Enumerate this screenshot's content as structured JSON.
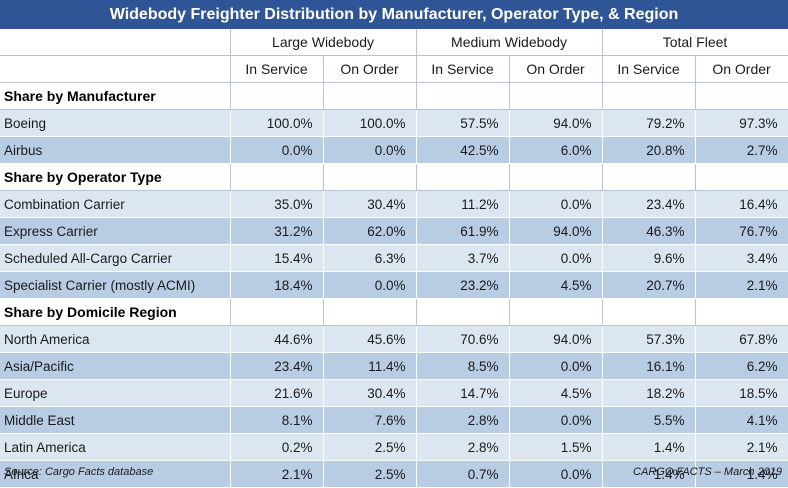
{
  "title": "Widebody Freighter Distribution by Manufacturer, Operator Type, & Region",
  "groups": [
    "Large Widebody",
    "Medium Widebody",
    "Total Fleet"
  ],
  "subheaders": [
    "In Service",
    "On Order",
    "In Service",
    "On Order",
    "In Service",
    "On Order"
  ],
  "sections": [
    {
      "label": "Share by Manufacturer",
      "rows": [
        {
          "label": "Boeing",
          "values": [
            "100.0%",
            "100.0%",
            "57.5%",
            "94.0%",
            "79.2%",
            "97.3%"
          ]
        },
        {
          "label": "Airbus",
          "values": [
            "0.0%",
            "0.0%",
            "42.5%",
            "6.0%",
            "20.8%",
            "2.7%"
          ]
        }
      ]
    },
    {
      "label": "Share by Operator Type",
      "rows": [
        {
          "label": "Combination Carrier",
          "values": [
            "35.0%",
            "30.4%",
            "11.2%",
            "0.0%",
            "23.4%",
            "16.4%"
          ]
        },
        {
          "label": "Express Carrier",
          "values": [
            "31.2%",
            "62.0%",
            "61.9%",
            "94.0%",
            "46.3%",
            "76.7%"
          ]
        },
        {
          "label": "Scheduled All-Cargo Carrier",
          "values": [
            "15.4%",
            "6.3%",
            "3.7%",
            "0.0%",
            "9.6%",
            "3.4%"
          ]
        },
        {
          "label": "Specialist Carrier (mostly ACMI)",
          "values": [
            "18.4%",
            "0.0%",
            "23.2%",
            "4.5%",
            "20.7%",
            "2.1%"
          ]
        }
      ]
    },
    {
      "label": "Share by Domicile Region",
      "rows": [
        {
          "label": "North America",
          "values": [
            "44.6%",
            "45.6%",
            "70.6%",
            "94.0%",
            "57.3%",
            "67.8%"
          ]
        },
        {
          "label": "Asia/Pacific",
          "values": [
            "23.4%",
            "11.4%",
            "8.5%",
            "0.0%",
            "16.1%",
            "6.2%"
          ]
        },
        {
          "label": "Europe",
          "values": [
            "21.6%",
            "30.4%",
            "14.7%",
            "4.5%",
            "18.2%",
            "18.5%"
          ]
        },
        {
          "label": "Middle East",
          "values": [
            "8.1%",
            "7.6%",
            "2.8%",
            "0.0%",
            "5.5%",
            "4.1%"
          ]
        },
        {
          "label": "Latin America",
          "values": [
            "0.2%",
            "2.5%",
            "2.8%",
            "1.5%",
            "1.4%",
            "2.1%"
          ]
        },
        {
          "label": "Africa",
          "values": [
            "2.1%",
            "2.5%",
            "0.7%",
            "0.0%",
            "1.4%",
            "1.4%"
          ]
        }
      ]
    }
  ],
  "footer": {
    "source": "Source: Cargo Facts database",
    "credit": "CARGO FACTS – March 2019"
  },
  "colors": {
    "title_bg": "#2f5597",
    "row_light": "#dce6f1",
    "row_dark": "#b8cce4"
  }
}
